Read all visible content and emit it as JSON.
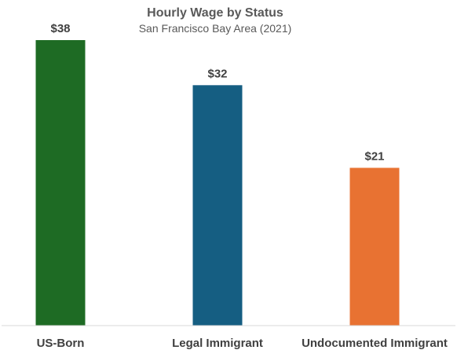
{
  "chart_data": {
    "type": "bar",
    "title": "Hourly Wage by Status",
    "subtitle": "San Francisco Bay Area (2021)",
    "categories": [
      "US-Born",
      "Legal Immigrant",
      "Undocumented Immigrant"
    ],
    "values": [
      38,
      32,
      21
    ],
    "data_labels": [
      "$38",
      "$32",
      "$21"
    ],
    "colors": [
      "#1e6b24",
      "#155e82",
      "#e87232"
    ],
    "ylim": [
      0,
      38
    ],
    "grid": false,
    "legend": "none",
    "xlabel": "",
    "ylabel": ""
  }
}
